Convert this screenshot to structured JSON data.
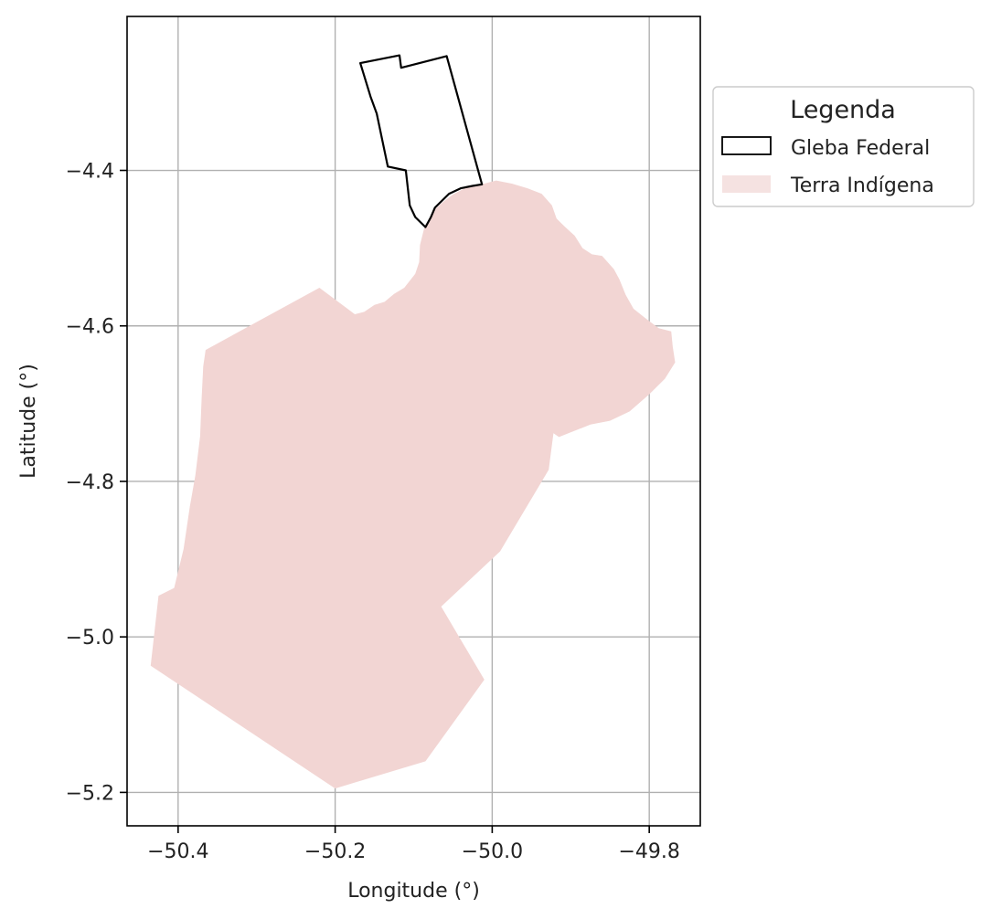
{
  "chart_data": {
    "type": "map",
    "xlabel": "Longitude (°)",
    "ylabel": "Latitude (°)",
    "xlim": [
      -50.465,
      -49.735
    ],
    "ylim": [
      -5.243,
      -4.202
    ],
    "grid": true,
    "xticks": [
      -50.4,
      -50.2,
      -50.0,
      -49.8
    ],
    "xtick_labels": [
      "−50.4",
      "−50.2",
      "−50.0",
      "−49.8"
    ],
    "yticks": [
      -4.4,
      -4.6,
      -4.8,
      -5.0,
      -5.2
    ],
    "ytick_labels": [
      "−4.4",
      "−4.6",
      "−4.8",
      "−5.0",
      "−5.2"
    ],
    "legend": {
      "title": "Legenda",
      "placement": "outside-right-top",
      "items": [
        {
          "label": "Gleba Federal",
          "style": "outline"
        },
        {
          "label": "Terra Indígena",
          "style": "fill"
        }
      ]
    },
    "layers": [
      {
        "name": "Terra Indígena",
        "style": "fill",
        "color": "#f2d5d3",
        "coordinates": [
          [
            -50.365,
            -4.631
          ],
          [
            -50.22,
            -4.551
          ],
          [
            -50.175,
            -4.585
          ],
          [
            -50.163,
            -4.582
          ],
          [
            -50.15,
            -4.573
          ],
          [
            -50.137,
            -4.569
          ],
          [
            -50.125,
            -4.559
          ],
          [
            -50.112,
            -4.551
          ],
          [
            -50.098,
            -4.533
          ],
          [
            -50.093,
            -4.518
          ],
          [
            -50.092,
            -4.496
          ],
          [
            -50.086,
            -4.472
          ],
          [
            -50.075,
            -4.452
          ],
          [
            -50.063,
            -4.441
          ],
          [
            -50.05,
            -4.431
          ],
          [
            -50.033,
            -4.422
          ],
          [
            -50.01,
            -4.417
          ],
          [
            -49.995,
            -4.413
          ],
          [
            -49.975,
            -4.417
          ],
          [
            -49.955,
            -4.423
          ],
          [
            -49.937,
            -4.43
          ],
          [
            -49.924,
            -4.445
          ],
          [
            -49.918,
            -4.462
          ],
          [
            -49.908,
            -4.472
          ],
          [
            -49.895,
            -4.484
          ],
          [
            -49.885,
            -4.5
          ],
          [
            -49.873,
            -4.508
          ],
          [
            -49.86,
            -4.51
          ],
          [
            -49.845,
            -4.527
          ],
          [
            -49.838,
            -4.54
          ],
          [
            -49.83,
            -4.56
          ],
          [
            -49.82,
            -4.578
          ],
          [
            -49.805,
            -4.59
          ],
          [
            -49.788,
            -4.603
          ],
          [
            -49.772,
            -4.607
          ],
          [
            -49.77,
            -4.627
          ],
          [
            -49.767,
            -4.647
          ],
          [
            -49.78,
            -4.668
          ],
          [
            -49.8,
            -4.688
          ],
          [
            -49.825,
            -4.71
          ],
          [
            -49.85,
            -4.722
          ],
          [
            -49.875,
            -4.727
          ],
          [
            -49.9,
            -4.737
          ],
          [
            -49.915,
            -4.743
          ],
          [
            -49.922,
            -4.738
          ],
          [
            -49.928,
            -4.785
          ],
          [
            -49.99,
            -4.89
          ],
          [
            -50.065,
            -4.961
          ],
          [
            -50.01,
            -5.055
          ],
          [
            -50.085,
            -5.16
          ],
          [
            -50.2,
            -5.195
          ],
          [
            -50.435,
            -5.037
          ],
          [
            -50.425,
            -4.947
          ],
          [
            -50.405,
            -4.937
          ],
          [
            -50.393,
            -4.887
          ],
          [
            -50.385,
            -4.832
          ],
          [
            -50.378,
            -4.792
          ],
          [
            -50.372,
            -4.742
          ],
          [
            -50.37,
            -4.692
          ],
          [
            -50.368,
            -4.652
          ]
        ]
      },
      {
        "name": "Gleba Federal",
        "style": "outline",
        "color": "#000000",
        "coordinates": [
          [
            -50.168,
            -4.262
          ],
          [
            -50.118,
            -4.252
          ],
          [
            -50.116,
            -4.268
          ],
          [
            -50.058,
            -4.253
          ],
          [
            -50.013,
            -4.418
          ],
          [
            -50.025,
            -4.42
          ],
          [
            -50.04,
            -4.423
          ],
          [
            -50.055,
            -4.43
          ],
          [
            -50.063,
            -4.438
          ],
          [
            -50.073,
            -4.448
          ],
          [
            -50.078,
            -4.46
          ],
          [
            -50.085,
            -4.473
          ],
          [
            -50.098,
            -4.46
          ],
          [
            -50.105,
            -4.445
          ],
          [
            -50.11,
            -4.4
          ],
          [
            -50.133,
            -4.395
          ],
          [
            -50.147,
            -4.327
          ],
          [
            -50.155,
            -4.305
          ]
        ]
      }
    ]
  }
}
